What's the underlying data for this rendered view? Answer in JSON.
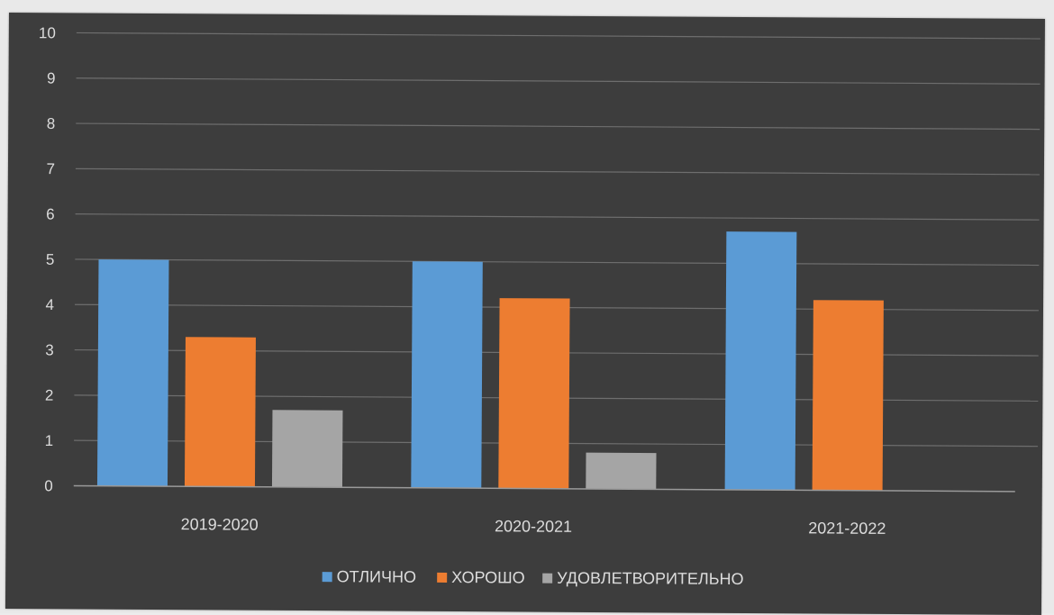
{
  "chart_data": {
    "type": "bar",
    "title": "",
    "xlabel": "",
    "ylabel": "",
    "ylim": [
      0,
      10
    ],
    "yticks": [
      "0",
      "1",
      "2",
      "3",
      "4",
      "5",
      "6",
      "7",
      "8",
      "9",
      "10"
    ],
    "categories": [
      "2019-2020",
      "2020-2021",
      "2021-2022"
    ],
    "series": [
      {
        "name": "ОТЛИЧНО",
        "color": "#5b9bd5",
        "values": [
          5.0,
          5.0,
          5.7
        ]
      },
      {
        "name": "ХОРОШО",
        "color": "#ed7d31",
        "values": [
          3.3,
          4.2,
          4.2
        ]
      },
      {
        "name": "УДОВЛЕТВОРИТЕЛЬНО",
        "color": "#a5a5a5",
        "values": [
          1.7,
          0.8,
          0.0
        ]
      }
    ],
    "grid": true,
    "legend_position": "bottom",
    "background_color": "#3d3d3d",
    "gridline_color": "#6e6e6e"
  }
}
